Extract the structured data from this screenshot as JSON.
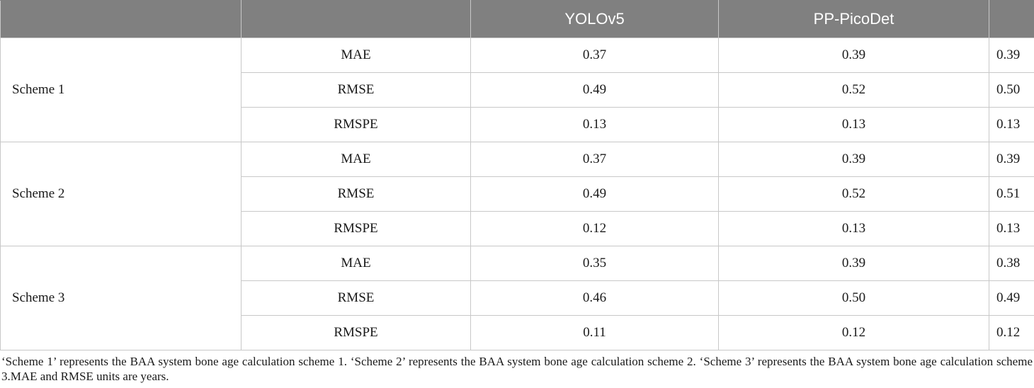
{
  "table": {
    "headers": [
      "",
      "",
      "YOLOv5",
      "PP-PicoDet",
      ""
    ],
    "groups": [
      {
        "scheme": "Scheme 1",
        "rows": [
          {
            "metric": "MAE",
            "values": [
              "0.37",
              "0.39",
              "0.39"
            ]
          },
          {
            "metric": "RMSE",
            "values": [
              "0.49",
              "0.52",
              "0.50"
            ]
          },
          {
            "metric": "RMSPE",
            "values": [
              "0.13",
              "0.13",
              "0.13"
            ]
          }
        ]
      },
      {
        "scheme": "Scheme 2",
        "rows": [
          {
            "metric": "MAE",
            "values": [
              "0.37",
              "0.39",
              "0.39"
            ]
          },
          {
            "metric": "RMSE",
            "values": [
              "0.49",
              "0.52",
              "0.51"
            ]
          },
          {
            "metric": "RMSPE",
            "values": [
              "0.12",
              "0.13",
              "0.13"
            ]
          }
        ]
      },
      {
        "scheme": "Scheme 3",
        "rows": [
          {
            "metric": "MAE",
            "values": [
              "0.35",
              "0.39",
              "0.38"
            ]
          },
          {
            "metric": "RMSE",
            "values": [
              "0.46",
              "0.50",
              "0.49"
            ]
          },
          {
            "metric": "RMSPE",
            "values": [
              "0.11",
              "0.12",
              "0.12"
            ]
          }
        ]
      }
    ]
  },
  "footnote": "‘Scheme 1’ represents the BAA system bone age calculation scheme 1. ‘Scheme 2’ represents the BAA system bone age calculation scheme 2. ‘Scheme 3’ represents the BAA system bone age calculation scheme 3.MAE and RMSE units are years."
}
